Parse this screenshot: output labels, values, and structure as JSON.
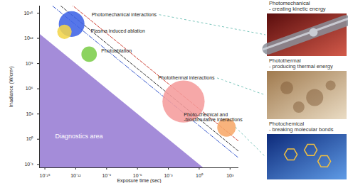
{
  "chart_data": {
    "type": "scatter",
    "xlabel": "Exposure time (sec)",
    "ylabel": "Irradiance (W/cm²)",
    "log": true,
    "xlim": [
      3e-16,
      7000
    ],
    "ylim": [
      0.0004,
      7000000000000000.0
    ],
    "xticks": [
      {
        "value": 1e-15,
        "label": "10⁻¹⁵"
      },
      {
        "value": 1e-12,
        "label": "10⁻¹²"
      },
      {
        "value": 1e-09,
        "label": "10⁻⁹"
      },
      {
        "value": 1e-06,
        "label": "10⁻⁶"
      },
      {
        "value": 0.001,
        "label": "10⁻³"
      },
      {
        "value": 1,
        "label": "10⁰"
      },
      {
        "value": 1000,
        "label": "10³"
      }
    ],
    "yticks": [
      {
        "value": 0.001,
        "label": "10⁻³"
      },
      {
        "value": 1,
        "label": "10⁰"
      },
      {
        "value": 1000,
        "label": "10³"
      },
      {
        "value": 1000000,
        "label": "10⁶"
      },
      {
        "value": 1000000000,
        "label": "10⁹"
      },
      {
        "value": 1000000000000,
        "label": "10¹²"
      },
      {
        "value": 1000000000000000,
        "label": "10¹⁵"
      }
    ],
    "area": {
      "label": "Diagnostics area",
      "color": "#a48cd9",
      "x": [
        1e-16,
        2.5
      ],
      "y": [
        10000000000000.0,
        0.0004
      ]
    },
    "lines": [
      {
        "color": "#cc3a2e",
        "line_style": "dashed",
        "x": [
          1e-16,
          10000
        ],
        "y": [
          4e+19,
          0.4
        ]
      },
      {
        "color": "#333333",
        "line_style": "dashed",
        "x": [
          1e-16,
          10000
        ],
        "y": [
          2.5e+18,
          0.025
        ]
      },
      {
        "color": "#3355cc",
        "line_style": "dashdot",
        "x": [
          1e-16,
          10000
        ],
        "y": [
          4e+17,
          0.004
        ]
      }
    ],
    "points": [
      {
        "label": "Photomechanical interactions",
        "x": 4e-13,
        "y": 50000000000000.0,
        "size": 1.25,
        "color": "#3f63e6"
      },
      {
        "label": "Plasma induced ablation",
        "x": 8e-14,
        "y": 6000000000000.0,
        "size": 0.7,
        "color": "#f3d54a"
      },
      {
        "label": "Photoablation",
        "x": 2e-11,
        "y": 13000000000.0,
        "size": 0.75,
        "color": "#7ccd4a"
      },
      {
        "label": "Photothermal interactions",
        "x": 0.03,
        "y": 30000,
        "size": 2.05,
        "color": "#f59c9c"
      },
      {
        "label": "Photo-chemical and\n-biostimulative interactions",
        "x": 450,
        "y": 25,
        "size": 0.9,
        "color": "#f7a86a"
      }
    ]
  },
  "panels": [
    {
      "title": "Photomechanical",
      "subtitle": "- creating kinetic energy"
    },
    {
      "title": "Photothermal",
      "subtitle": "- producing thermal energy"
    },
    {
      "title": "Photochemical",
      "subtitle": "- breaking molecular bonds"
    }
  ]
}
